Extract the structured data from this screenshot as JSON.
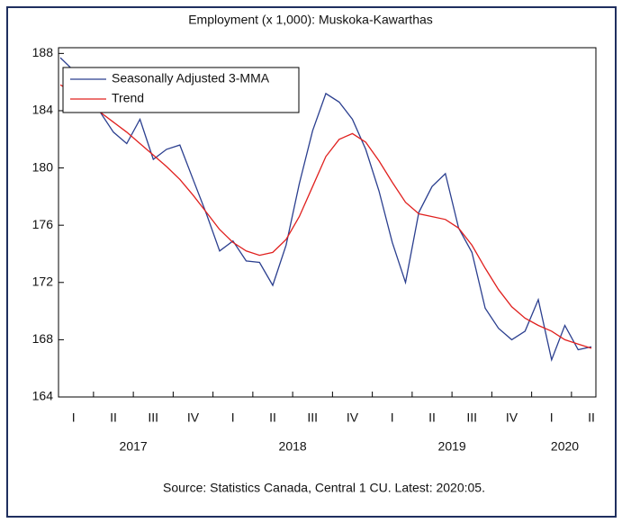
{
  "chart_data": {
    "type": "line",
    "title": "Employment (x 1,000): Muskoka-Kawarthas",
    "source": "Source: Statistics Canada, Central 1 CU. Latest: 2020:05.",
    "categories": [
      null,
      "I",
      null,
      null,
      "II",
      null,
      null,
      "III",
      null,
      null,
      "IV",
      null,
      null,
      "I",
      null,
      null,
      "II",
      null,
      null,
      "III",
      null,
      null,
      "IV",
      null,
      null,
      "I",
      null,
      null,
      "II",
      null,
      null,
      "III",
      null,
      null,
      "IV",
      null,
      null,
      "I",
      null,
      null,
      "II"
    ],
    "years": [
      "2017",
      "2018",
      "2019",
      "2020"
    ],
    "series": [
      {
        "name": "Seasonally Adjusted 3-MMA",
        "color": "#2b3f8f",
        "values": [
          187.7,
          186.8,
          185.8,
          183.9,
          182.5,
          181.7,
          183.4,
          180.6,
          181.3,
          181.6,
          179.2,
          176.8,
          174.2,
          174.9,
          173.5,
          173.4,
          171.8,
          174.6,
          178.9,
          182.6,
          185.2,
          184.6,
          183.4,
          181.3,
          178.4,
          174.8,
          172.0,
          176.9,
          178.7,
          179.6,
          175.8,
          174.1,
          170.2,
          168.8,
          168.0,
          168.6,
          170.8,
          166.6,
          169.0,
          167.3,
          167.5
        ]
      },
      {
        "name": "Trend",
        "color": "#e0201e",
        "values": [
          185.8,
          185.3,
          184.7,
          183.9,
          183.2,
          182.5,
          181.7,
          180.9,
          180.1,
          179.2,
          178.1,
          176.9,
          175.7,
          174.8,
          174.2,
          173.9,
          174.1,
          175.0,
          176.6,
          178.7,
          180.8,
          182.0,
          182.4,
          181.8,
          180.5,
          179.0,
          177.6,
          176.8,
          176.6,
          176.4,
          175.8,
          174.6,
          173.0,
          171.5,
          170.3,
          169.5,
          169.0,
          168.6,
          168.0,
          167.7,
          167.4
        ]
      }
    ],
    "ylim": [
      164,
      188.4
    ],
    "yticks": [
      164,
      168,
      172,
      176,
      180,
      184,
      188
    ],
    "legend": "upper left"
  }
}
